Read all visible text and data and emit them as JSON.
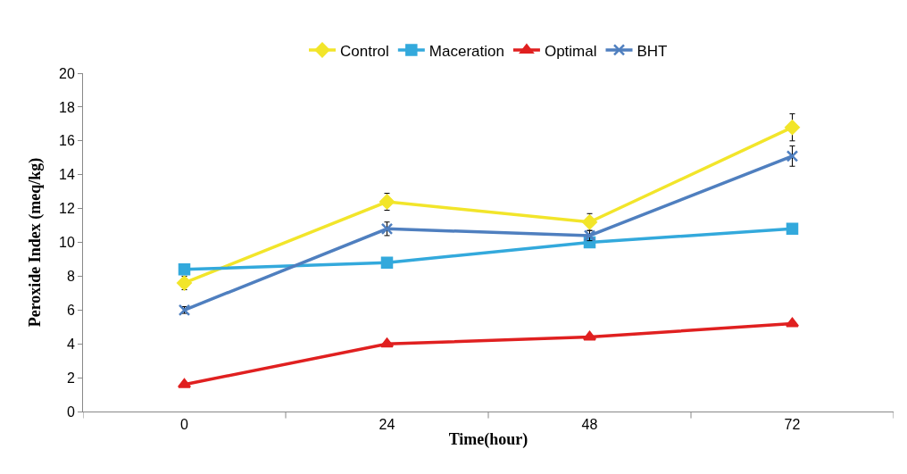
{
  "chart_data": {
    "type": "line",
    "xlabel": "Time(hour)",
    "ylabel": "Peroxide Index (meq/kg)",
    "categories": [
      "0",
      "24",
      "48",
      "72"
    ],
    "series": [
      {
        "name": "Control",
        "color": "#f2e52a",
        "marker": "diamond",
        "values": [
          7.6,
          12.4,
          11.2,
          16.8
        ],
        "errors": [
          0.4,
          0.5,
          0.5,
          0.8
        ]
      },
      {
        "name": "Maceration",
        "color": "#33a9dc",
        "marker": "square",
        "values": [
          8.4,
          8.8,
          10.0,
          10.8
        ]
      },
      {
        "name": "Optimal",
        "color": "#e02020",
        "marker": "triangle",
        "values": [
          1.6,
          4.0,
          4.4,
          5.2
        ]
      },
      {
        "name": "BHT",
        "color": "#4f7fbf",
        "marker": "cross",
        "values": [
          6.0,
          10.8,
          10.4,
          15.1
        ],
        "errors": [
          0.2,
          0.4,
          0.3,
          0.6
        ]
      }
    ],
    "ylim": [
      0,
      20
    ],
    "yticks": [
      0,
      2,
      4,
      6,
      8,
      10,
      12,
      14,
      16,
      18,
      20
    ],
    "legend": "top"
  }
}
